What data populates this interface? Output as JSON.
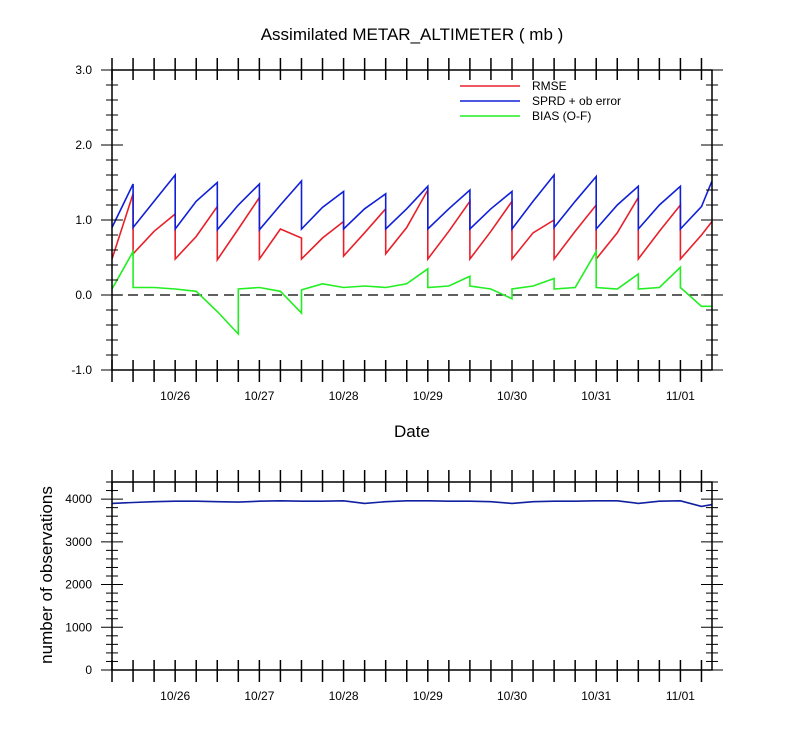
{
  "colors": {
    "rmse": "#e8202a",
    "sprd": "#1020d8",
    "bias": "#22ee22",
    "nobs": "#1020a0",
    "zero_line": "#000000"
  },
  "chart_data": [
    {
      "type": "line",
      "title": "Assimilated METAR_ALTIMETER ( mb )",
      "xlabel": "Date",
      "ylabel": "",
      "x_tick_labels": [
        "10/26",
        "10/27",
        "10/28",
        "10/29",
        "10/30",
        "10/31",
        "11/01"
      ],
      "x_tick_positions": [
        1.5,
        3.5,
        5.5,
        7.5,
        9.5,
        11.5,
        13.5
      ],
      "xlim": [
        0,
        14.25
      ],
      "ylim": [
        -1.0,
        3.0
      ],
      "y_tick_labels": [
        "-1.0",
        "0.0",
        "1.0",
        "2.0",
        "3.0"
      ],
      "y_tick_values": [
        -1.0,
        0.0,
        1.0,
        2.0,
        3.0
      ],
      "zero_line": true,
      "legend_position": "top-right",
      "series": [
        {
          "name": "RMSE",
          "key": "rmse",
          "points": [
            [
              0.0,
              0.48
            ],
            [
              0.5,
              1.35
            ],
            [
              0.5,
              0.55
            ],
            [
              1.0,
              0.85
            ],
            [
              1.5,
              1.08
            ],
            [
              1.5,
              0.48
            ],
            [
              2.0,
              0.78
            ],
            [
              2.5,
              1.18
            ],
            [
              2.5,
              0.47
            ],
            [
              3.0,
              0.88
            ],
            [
              3.5,
              1.3
            ],
            [
              3.5,
              0.48
            ],
            [
              4.0,
              0.88
            ],
            [
              4.5,
              0.76
            ],
            [
              4.5,
              0.48
            ],
            [
              5.0,
              0.76
            ],
            [
              5.5,
              0.98
            ],
            [
              5.5,
              0.52
            ],
            [
              6.0,
              0.83
            ],
            [
              6.5,
              1.15
            ],
            [
              6.5,
              0.55
            ],
            [
              7.0,
              0.9
            ],
            [
              7.5,
              1.4
            ],
            [
              7.5,
              0.48
            ],
            [
              8.0,
              0.85
            ],
            [
              8.5,
              1.25
            ],
            [
              8.5,
              0.48
            ],
            [
              9.0,
              0.85
            ],
            [
              9.5,
              1.25
            ],
            [
              9.5,
              0.48
            ],
            [
              10.0,
              0.83
            ],
            [
              10.5,
              1.0
            ],
            [
              10.5,
              0.48
            ],
            [
              11.0,
              0.85
            ],
            [
              11.5,
              1.2
            ],
            [
              11.5,
              0.48
            ],
            [
              12.0,
              0.83
            ],
            [
              12.5,
              1.3
            ],
            [
              12.5,
              0.48
            ],
            [
              13.0,
              0.85
            ],
            [
              13.5,
              1.2
            ],
            [
              13.5,
              0.48
            ],
            [
              14.0,
              0.8
            ],
            [
              14.25,
              0.98
            ]
          ]
        },
        {
          "name": "SPRD + ob error",
          "key": "sprd",
          "points": [
            [
              0.0,
              0.9
            ],
            [
              0.5,
              1.48
            ],
            [
              0.5,
              0.9
            ],
            [
              1.0,
              1.25
            ],
            [
              1.5,
              1.6
            ],
            [
              1.5,
              0.88
            ],
            [
              2.0,
              1.25
            ],
            [
              2.5,
              1.5
            ],
            [
              2.5,
              0.87
            ],
            [
              3.0,
              1.2
            ],
            [
              3.5,
              1.48
            ],
            [
              3.5,
              0.87
            ],
            [
              4.0,
              1.2
            ],
            [
              4.5,
              1.52
            ],
            [
              4.5,
              0.88
            ],
            [
              5.0,
              1.17
            ],
            [
              5.5,
              1.38
            ],
            [
              5.5,
              0.88
            ],
            [
              6.0,
              1.15
            ],
            [
              6.5,
              1.35
            ],
            [
              6.5,
              0.88
            ],
            [
              7.0,
              1.15
            ],
            [
              7.5,
              1.45
            ],
            [
              7.5,
              0.88
            ],
            [
              8.0,
              1.15
            ],
            [
              8.5,
              1.4
            ],
            [
              8.5,
              0.88
            ],
            [
              9.0,
              1.15
            ],
            [
              9.5,
              1.38
            ],
            [
              9.5,
              0.88
            ],
            [
              10.0,
              1.25
            ],
            [
              10.5,
              1.6
            ],
            [
              10.5,
              0.9
            ],
            [
              11.0,
              1.25
            ],
            [
              11.5,
              1.58
            ],
            [
              11.5,
              0.88
            ],
            [
              12.0,
              1.2
            ],
            [
              12.5,
              1.45
            ],
            [
              12.5,
              0.88
            ],
            [
              13.0,
              1.2
            ],
            [
              13.5,
              1.45
            ],
            [
              13.5,
              0.88
            ],
            [
              14.0,
              1.18
            ],
            [
              14.25,
              1.52
            ]
          ]
        },
        {
          "name": "BIAS (O-F)",
          "key": "bias",
          "points": [
            [
              0.0,
              0.08
            ],
            [
              0.5,
              0.58
            ],
            [
              0.5,
              0.1
            ],
            [
              1.0,
              0.1
            ],
            [
              1.5,
              0.08
            ],
            [
              1.5,
              0.08
            ],
            [
              2.0,
              0.05
            ],
            [
              2.5,
              -0.22
            ],
            [
              3.0,
              -0.52
            ],
            [
              3.0,
              0.08
            ],
            [
              3.5,
              0.1
            ],
            [
              4.0,
              0.05
            ],
            [
              4.5,
              -0.24
            ],
            [
              4.5,
              0.07
            ],
            [
              5.0,
              0.15
            ],
            [
              5.5,
              0.1
            ],
            [
              5.5,
              0.1
            ],
            [
              6.0,
              0.12
            ],
            [
              6.5,
              0.1
            ],
            [
              6.5,
              0.1
            ],
            [
              7.0,
              0.15
            ],
            [
              7.5,
              0.35
            ],
            [
              7.5,
              0.1
            ],
            [
              8.0,
              0.12
            ],
            [
              8.5,
              0.25
            ],
            [
              8.5,
              0.12
            ],
            [
              9.0,
              0.08
            ],
            [
              9.5,
              -0.05
            ],
            [
              9.5,
              0.08
            ],
            [
              10.0,
              0.12
            ],
            [
              10.5,
              0.22
            ],
            [
              10.5,
              0.08
            ],
            [
              11.0,
              0.1
            ],
            [
              11.5,
              0.58
            ],
            [
              11.5,
              0.1
            ],
            [
              12.0,
              0.08
            ],
            [
              12.5,
              0.28
            ],
            [
              12.5,
              0.08
            ],
            [
              13.0,
              0.1
            ],
            [
              13.5,
              0.37
            ],
            [
              13.5,
              0.1
            ],
            [
              14.0,
              -0.15
            ],
            [
              14.25,
              -0.15
            ]
          ]
        }
      ]
    },
    {
      "type": "line",
      "title": "",
      "xlabel": "",
      "ylabel": "number of observations",
      "x_tick_labels": [
        "10/26",
        "10/27",
        "10/28",
        "10/29",
        "10/30",
        "10/31",
        "11/01"
      ],
      "x_tick_positions": [
        1.5,
        3.5,
        5.5,
        7.5,
        9.5,
        11.5,
        13.5
      ],
      "xlim": [
        0,
        14.25
      ],
      "ylim": [
        0,
        4400
      ],
      "y_tick_labels": [
        "0",
        "1000",
        "2000",
        "3000",
        "4000"
      ],
      "y_tick_values": [
        0,
        1000,
        2000,
        3000,
        4000
      ],
      "series": [
        {
          "key": "nobs",
          "points": [
            [
              0.0,
              3900
            ],
            [
              0.5,
              3920
            ],
            [
              1.0,
              3940
            ],
            [
              1.5,
              3950
            ],
            [
              2.0,
              3950
            ],
            [
              2.5,
              3940
            ],
            [
              3.0,
              3930
            ],
            [
              3.5,
              3950
            ],
            [
              4.0,
              3960
            ],
            [
              4.5,
              3950
            ],
            [
              5.0,
              3950
            ],
            [
              5.5,
              3960
            ],
            [
              6.0,
              3900
            ],
            [
              6.5,
              3940
            ],
            [
              7.0,
              3960
            ],
            [
              7.5,
              3960
            ],
            [
              8.0,
              3950
            ],
            [
              8.5,
              3950
            ],
            [
              9.0,
              3940
            ],
            [
              9.5,
              3900
            ],
            [
              10.0,
              3940
            ],
            [
              10.5,
              3950
            ],
            [
              11.0,
              3950
            ],
            [
              11.5,
              3960
            ],
            [
              12.0,
              3960
            ],
            [
              12.5,
              3900
            ],
            [
              13.0,
              3950
            ],
            [
              13.5,
              3960
            ],
            [
              14.0,
              3830
            ],
            [
              14.25,
              3870
            ]
          ]
        }
      ]
    }
  ]
}
